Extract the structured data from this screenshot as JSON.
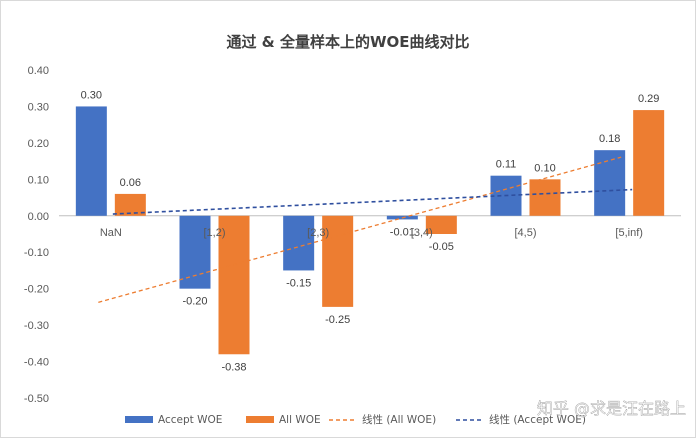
{
  "chart_data": {
    "type": "bar",
    "title": "通过 & 全量样本上的WOE曲线对比",
    "categories": [
      "NaN",
      "[1,2)",
      "[2,3)",
      "[3,4)",
      "[4,5)",
      "[5,inf)"
    ],
    "series": [
      {
        "name": "Accept WOE",
        "values": [
          0.3,
          -0.2,
          -0.15,
          -0.01,
          0.11,
          0.18
        ],
        "labels": [
          "0.30",
          "-0.20",
          "-0.15",
          "-0.01",
          "0.11",
          "0.18"
        ],
        "color": "#4472c4"
      },
      {
        "name": "All WOE",
        "values": [
          0.06,
          -0.38,
          -0.25,
          -0.05,
          0.1,
          0.29
        ],
        "labels": [
          "0.06",
          "-0.38",
          "-0.25",
          "-0.05",
          "0.10",
          "0.29"
        ],
        "color": "#ed7d31"
      }
    ],
    "trendlines": [
      {
        "name": "线性 (All WOE)",
        "series": "All WOE",
        "type": "linear",
        "style": "dashed",
        "color": "#ed7d31"
      },
      {
        "name": "线性 (Accept WOE)",
        "series": "Accept WOE",
        "type": "linear",
        "style": "dashed",
        "color": "#2f4f9f"
      }
    ],
    "ylim": [
      -0.5,
      0.4
    ],
    "yticks": [
      "0.40",
      "0.30",
      "0.20",
      "0.10",
      "0.00",
      "-0.10",
      "-0.20",
      "-0.30",
      "-0.40",
      "-0.50"
    ],
    "grid": false,
    "legend_position": "bottom"
  },
  "watermark": "知乎 @求是汪在路上"
}
